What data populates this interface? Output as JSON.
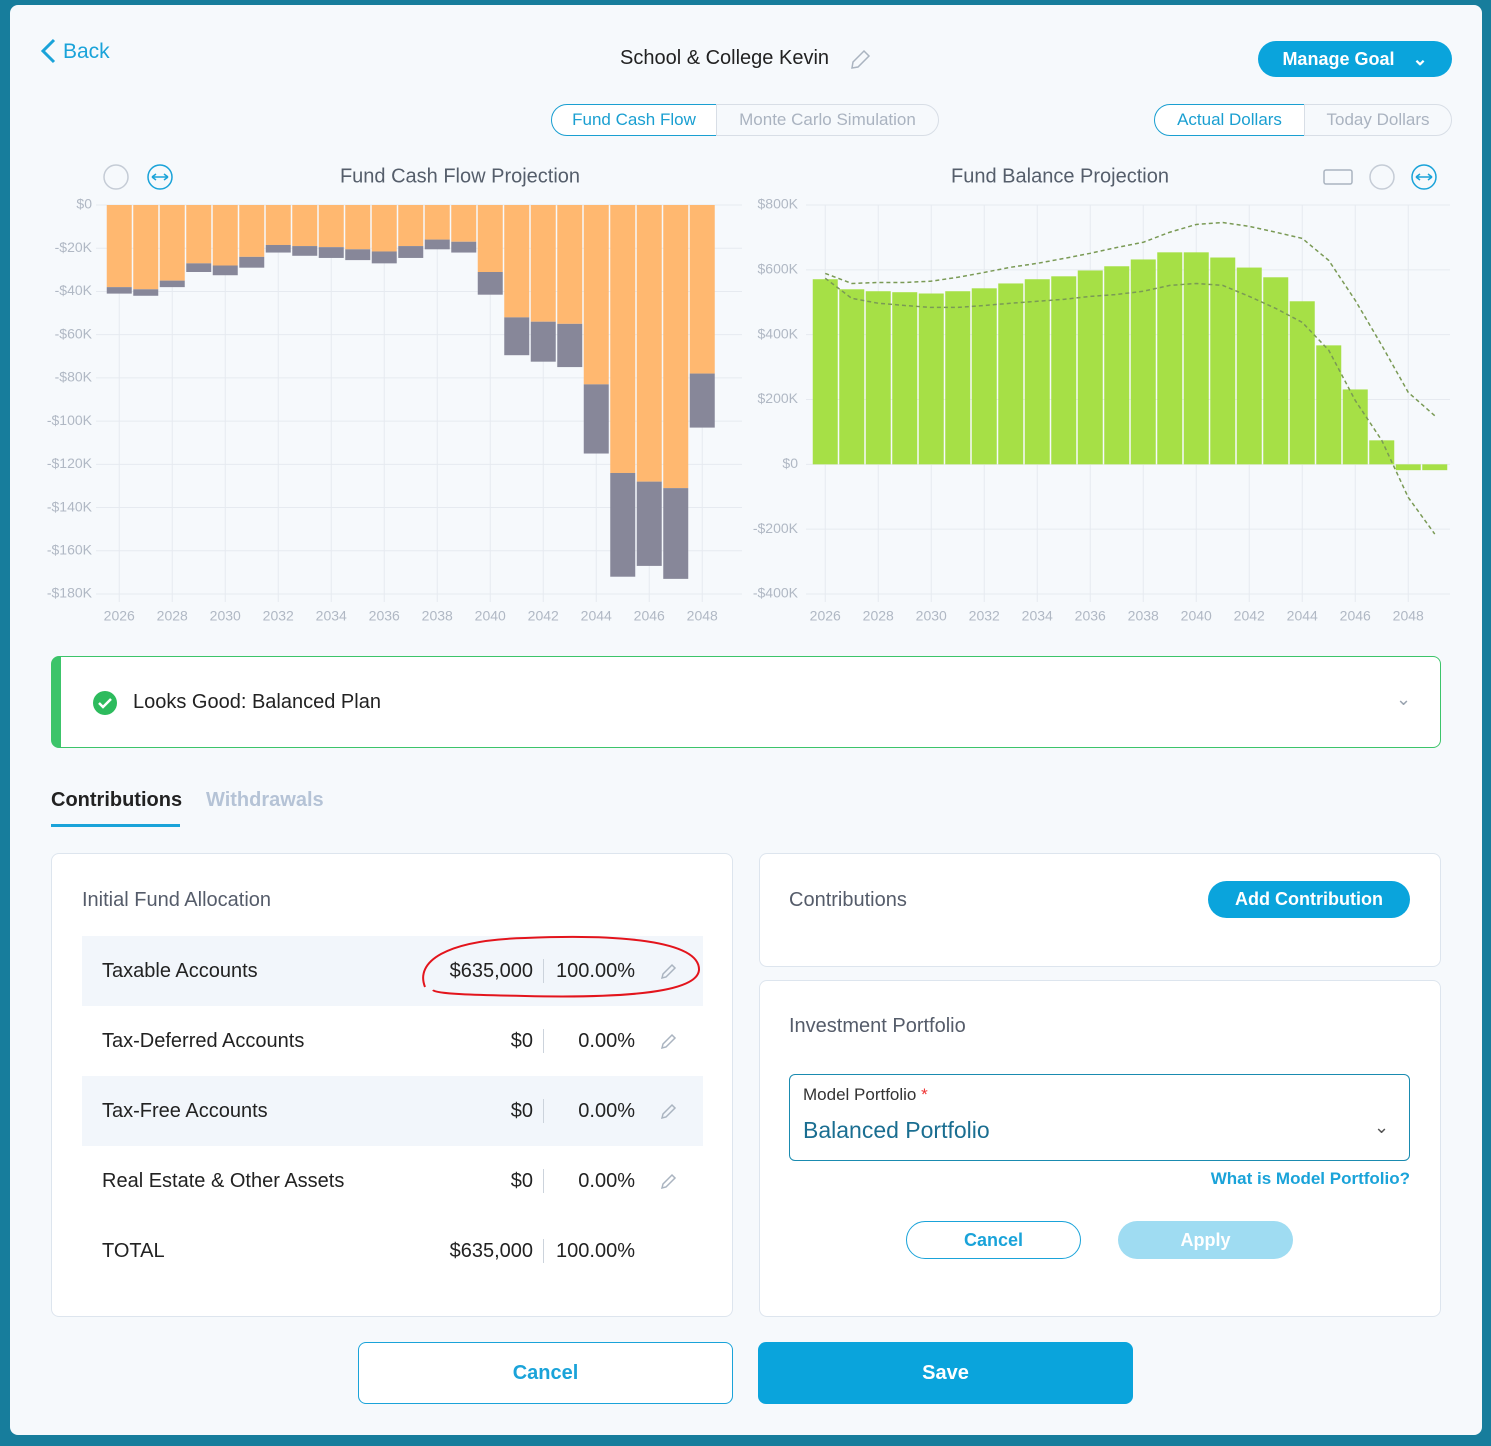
{
  "header": {
    "back": "Back",
    "title": "School & College Kevin",
    "manage_goal": "Manage Goal"
  },
  "view_toggle": [
    "Fund Cash Flow",
    "Monte Carlo Simulation"
  ],
  "dollar_toggle": [
    "Actual Dollars",
    "Today Dollars"
  ],
  "chart_data": [
    {
      "type": "bar",
      "title": "Fund Cash Flow Projection",
      "stacked": true,
      "categories": [
        "2026",
        null,
        "2028",
        null,
        "2030",
        null,
        "2032",
        null,
        "2034",
        null,
        "2036",
        null,
        "2038",
        null,
        "2040",
        null,
        "2042",
        null,
        "2044",
        null,
        "2046",
        null,
        "2048"
      ],
      "series": [
        {
          "color": "#ffb870",
          "values": [
            -38,
            -39,
            -35,
            -27,
            -28,
            -24,
            -18.5,
            -19,
            -19.5,
            -20.5,
            -21.5,
            -19,
            -16,
            -17,
            -31,
            -52,
            -54,
            -55,
            -83,
            -124,
            -128,
            -131,
            -78
          ]
        },
        {
          "color": "#878799",
          "values": [
            -3,
            -3,
            -3,
            -4,
            -4.5,
            -5,
            -3.5,
            -4.5,
            -5,
            -5,
            -5.5,
            -5.5,
            -4.5,
            -5,
            -10.5,
            -17.5,
            -18.5,
            -20,
            -32,
            -48,
            -39,
            -42,
            -25
          ]
        }
      ],
      "ylim": [
        -180,
        0
      ],
      "yticks": [
        {
          "value": 0,
          "label": "$0"
        },
        {
          "value": -20,
          "label": "-$20K"
        },
        {
          "value": -40,
          "label": "-$40K"
        },
        {
          "value": -60,
          "label": "-$60K"
        },
        {
          "value": -80,
          "label": "-$80K"
        },
        {
          "value": -100,
          "label": "-$100K"
        },
        {
          "value": -120,
          "label": "-$120K"
        },
        {
          "value": -140,
          "label": "-$140K"
        },
        {
          "value": -160,
          "label": "-$160K"
        },
        {
          "value": -180,
          "label": "-$180K"
        }
      ],
      "grid": true
    },
    {
      "type": "bar",
      "title": "Fund Balance Projection",
      "stacked": false,
      "categories": [
        "2026",
        null,
        "2028",
        null,
        "2030",
        null,
        "2032",
        null,
        "2034",
        null,
        "2036",
        null,
        "2038",
        null,
        "2040",
        null,
        "2042",
        null,
        "2044",
        null,
        "2046",
        null,
        "2048",
        null
      ],
      "series": [
        {
          "kind": "bar",
          "color": "#a6e046",
          "values": [
            571,
            540,
            534,
            531,
            527,
            534,
            543,
            558,
            571,
            580,
            598,
            611,
            632,
            654,
            654,
            638,
            607,
            577,
            503,
            367,
            231,
            74,
            -18,
            -18
          ]
        },
        {
          "kind": "line",
          "style": "dashed",
          "color": "#7a9a55",
          "values": [
            589,
            558,
            561,
            561,
            565,
            577,
            592,
            608,
            620,
            635,
            651,
            669,
            685,
            716,
            740,
            746,
            734,
            716,
            697,
            629,
            506,
            367,
            222,
            150
          ]
        },
        {
          "kind": "line",
          "style": "dashed",
          "color": "#7a9a55",
          "values": [
            574,
            512,
            497,
            490,
            484,
            484,
            490,
            497,
            503,
            509,
            518,
            524,
            534,
            552,
            558,
            552,
            518,
            481,
            438,
            352,
            197,
            74,
            -102,
            -215
          ]
        }
      ],
      "ylim": [
        -400,
        800
      ],
      "yticks": [
        {
          "value": 800,
          "label": "$800K"
        },
        {
          "value": 600,
          "label": "$600K"
        },
        {
          "value": 400,
          "label": "$400K"
        },
        {
          "value": 200,
          "label": "$200K"
        },
        {
          "value": 0,
          "label": "$0"
        },
        {
          "value": -200,
          "label": "-$200K"
        },
        {
          "value": -400,
          "label": "-$400K"
        }
      ],
      "grid": true
    }
  ],
  "status": "Looks Good: Balanced Plan",
  "tabs": [
    "Contributions",
    "Withdrawals"
  ],
  "allocation": {
    "title": "Initial Fund Allocation",
    "rows": [
      [
        "Taxable Accounts",
        "$635,000",
        "100.00%"
      ],
      [
        "Tax-Deferred Accounts",
        "$0",
        "0.00%"
      ],
      [
        "Tax-Free Accounts",
        "$0",
        "0.00%"
      ],
      [
        "Real Estate & Other Assets",
        "$0",
        "0.00%"
      ],
      [
        "TOTAL",
        "$635,000",
        "100.00%"
      ]
    ]
  },
  "contributions": {
    "title": "Contributions",
    "button": "Add Contribution"
  },
  "portfolio": {
    "title": "Investment Portfolio",
    "field_label": "Model Portfolio",
    "required": "*",
    "value": "Balanced Portfolio",
    "help": "What is Model Portfolio?",
    "cancel": "Cancel",
    "apply": "Apply"
  },
  "footer": {
    "cancel": "Cancel",
    "save": "Save"
  }
}
